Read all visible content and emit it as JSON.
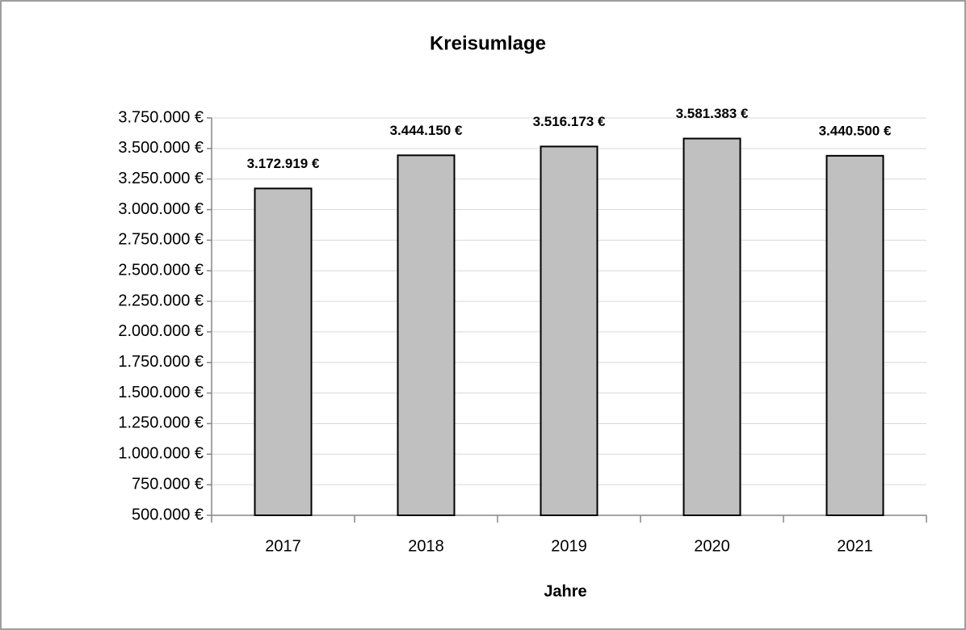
{
  "chart_data": {
    "type": "bar",
    "title": "Kreisumlage",
    "x_label": "Jahre",
    "categories": [
      "2017",
      "2018",
      "2019",
      "2020",
      "2021"
    ],
    "values": [
      3172919,
      3444150,
      3516173,
      3581383,
      3440500
    ],
    "value_labels": [
      "3.172.919 €",
      "3.444.150 €",
      "3.516.173 €",
      "3.581.383 €",
      "3.440.500 €"
    ],
    "color": "#c0c0c0",
    "ylim": [
      500000,
      3750000
    ],
    "yticks": [
      {
        "value": 500000,
        "label": "500.000 €"
      },
      {
        "value": 750000,
        "label": "750.000 €"
      },
      {
        "value": 1000000,
        "label": "1.000.000 €"
      },
      {
        "value": 1250000,
        "label": "1.250.000 €"
      },
      {
        "value": 1500000,
        "label": "1.500.000 €"
      },
      {
        "value": 1750000,
        "label": "1.750.000 €"
      },
      {
        "value": 2000000,
        "label": "2.000.000 €"
      },
      {
        "value": 2250000,
        "label": "2.250.000 €"
      },
      {
        "value": 2500000,
        "label": "2.500.000 €"
      },
      {
        "value": 2750000,
        "label": "2.750.000 €"
      },
      {
        "value": 3000000,
        "label": "3.000.000 €"
      },
      {
        "value": 3250000,
        "label": "3.250.000 €"
      },
      {
        "value": 3500000,
        "label": "3.500.000 €"
      },
      {
        "value": 3750000,
        "label": "3.750.000 €"
      }
    ],
    "grid": true
  }
}
